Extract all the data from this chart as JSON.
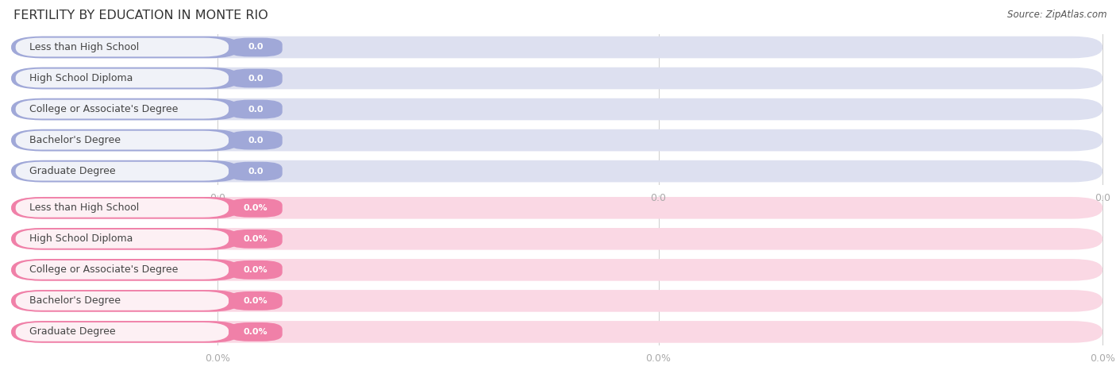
{
  "title": "FERTILITY BY EDUCATION IN MONTE RIO",
  "source": "Source: ZipAtlas.com",
  "background_color": "#ffffff",
  "categories": [
    "Less than High School",
    "High School Diploma",
    "College or Associate's Degree",
    "Bachelor's Degree",
    "Graduate Degree"
  ],
  "top_values": [
    0.0,
    0.0,
    0.0,
    0.0,
    0.0
  ],
  "bottom_values": [
    0.0,
    0.0,
    0.0,
    0.0,
    0.0
  ],
  "top_bar_color": "#a0a8d8",
  "top_bar_bg_color": "#dde0f0",
  "top_white_pill_color": "#f0f2f8",
  "bottom_bar_color": "#f080a8",
  "bottom_bar_bg_color": "#fad8e4",
  "bottom_white_pill_color": "#fdf0f4",
  "category_text_color": "#444444",
  "tick_color": "#aaaaaa",
  "title_color": "#333333",
  "source_color": "#555555",
  "value_text_color": "#ffffff",
  "outer_bg_color": "#eeeeee"
}
